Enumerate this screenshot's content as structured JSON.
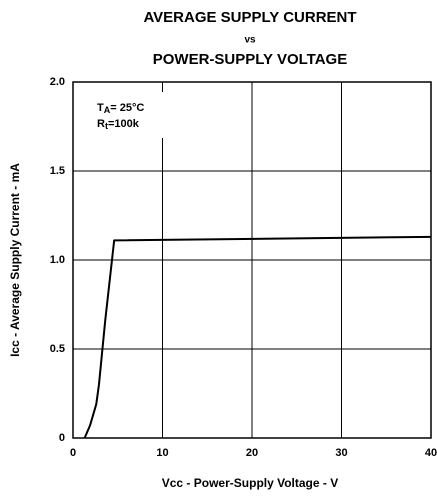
{
  "chart_data": {
    "type": "line",
    "title": [
      "AVERAGE SUPPLY CURRENT",
      "vs",
      "POWER-SUPPLY VOLTAGE"
    ],
    "x_label": "Vcc - Power-Supply Voltage - V",
    "y_label": "Icc - Average Supply Current - mA",
    "annotations": [
      {
        "main": "T",
        "sub": "A",
        "after": "= 25°C"
      },
      {
        "main": "R",
        "sub": "t",
        "after": "=100k"
      }
    ],
    "series": [
      {
        "name": "Icc",
        "color": "#000000",
        "x": [
          1.3,
          1.9,
          2.6,
          2.9,
          3.6,
          4.6,
          40
        ],
        "values": [
          0,
          0.07,
          0.19,
          0.3,
          0.66,
          1.11,
          1.13
        ]
      }
    ],
    "xlim": [
      0,
      40
    ],
    "xticks": [
      0,
      10,
      20,
      30,
      40
    ],
    "ylim": [
      0,
      2
    ],
    "yticks": [
      0,
      0.5,
      {
        "value": 1,
        "label": "1.0"
      },
      1.5,
      {
        "value": 2,
        "label": "2.0"
      }
    ],
    "grid": true
  }
}
